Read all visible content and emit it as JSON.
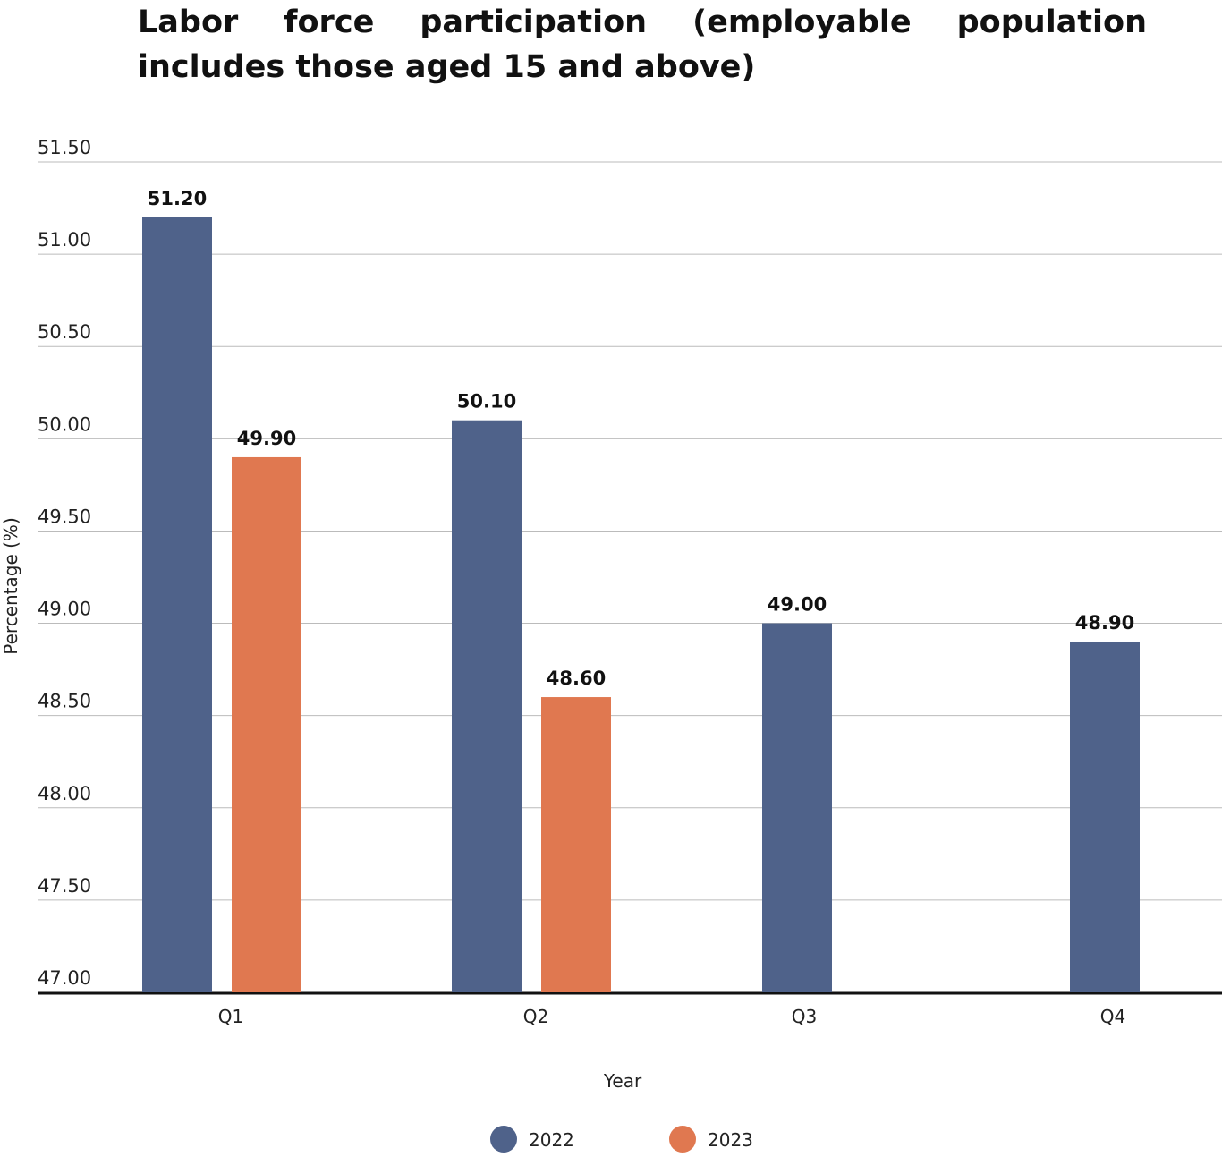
{
  "chart_data": {
    "type": "bar",
    "title": "Labor force participation (employable population includes those aged 15 and above)",
    "xlabel": "Year",
    "ylabel": "Percentage (%)",
    "categories": [
      "Q1",
      "Q2",
      "Q3",
      "Q4"
    ],
    "ylim": [
      47.0,
      51.5
    ],
    "yticks": [
      "47.00",
      "47.50",
      "48.00",
      "48.50",
      "49.00",
      "49.50",
      "50.00",
      "50.50",
      "51.00",
      "51.50"
    ],
    "grid": true,
    "legend_position": "bottom",
    "series": [
      {
        "name": "2022",
        "color": "#4f628a",
        "values": [
          51.2,
          50.1,
          49.0,
          48.9
        ],
        "labels": [
          "51.20",
          "50.10",
          "49.00",
          "48.90"
        ]
      },
      {
        "name": "2023",
        "color": "#e07850",
        "values": [
          49.9,
          48.6,
          null,
          null
        ],
        "labels": [
          "49.90",
          "48.60",
          null,
          null
        ]
      }
    ]
  }
}
